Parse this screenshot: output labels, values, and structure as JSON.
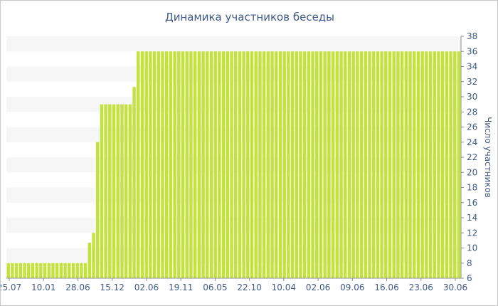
{
  "chart_data": {
    "type": "bar",
    "title": "Динамика участников беседы",
    "xlabel": "",
    "ylabel": "Число участников",
    "ylim": [
      6,
      38
    ],
    "y_ticks": [
      6,
      8,
      10,
      12,
      14,
      16,
      18,
      20,
      22,
      24,
      26,
      28,
      30,
      32,
      34,
      36,
      38
    ],
    "x_tick_labels": [
      "25.07",
      "10.01",
      "28.06",
      "15.12",
      "02.06",
      "19.11",
      "06.05",
      "22.10",
      "10.04",
      "02.06",
      "09.06",
      "16.06",
      "23.06",
      "30.06"
    ],
    "grid": "horizontal bands",
    "values": [
      8,
      8,
      8,
      8,
      8,
      8,
      8,
      8,
      8,
      8,
      8,
      8,
      8,
      8,
      8,
      8,
      8,
      8,
      8,
      8,
      10.7,
      12,
      24,
      29,
      29,
      29,
      29,
      29,
      29,
      29,
      29,
      31.3,
      36,
      36,
      36,
      36,
      36,
      36,
      36,
      36,
      36,
      36,
      36,
      36,
      36,
      36,
      36,
      36,
      36,
      36,
      36,
      36,
      36,
      36,
      36,
      36,
      36,
      36,
      36,
      36,
      36,
      36,
      36,
      36,
      36,
      36,
      36,
      36,
      36,
      36,
      36,
      36,
      36,
      36,
      36,
      36,
      36,
      36,
      36,
      36,
      36,
      36,
      36,
      36,
      36,
      36,
      36,
      36,
      36,
      36,
      36,
      36,
      36,
      36,
      36,
      36,
      36,
      36,
      36,
      36,
      36,
      36,
      36,
      36,
      36,
      36,
      36,
      36,
      36,
      36,
      36,
      36
    ],
    "colors": {
      "bar": "#c2e23c",
      "band": "#f6f6f6",
      "text": "#3f5a8a",
      "axis": "#8c8c8c"
    }
  }
}
